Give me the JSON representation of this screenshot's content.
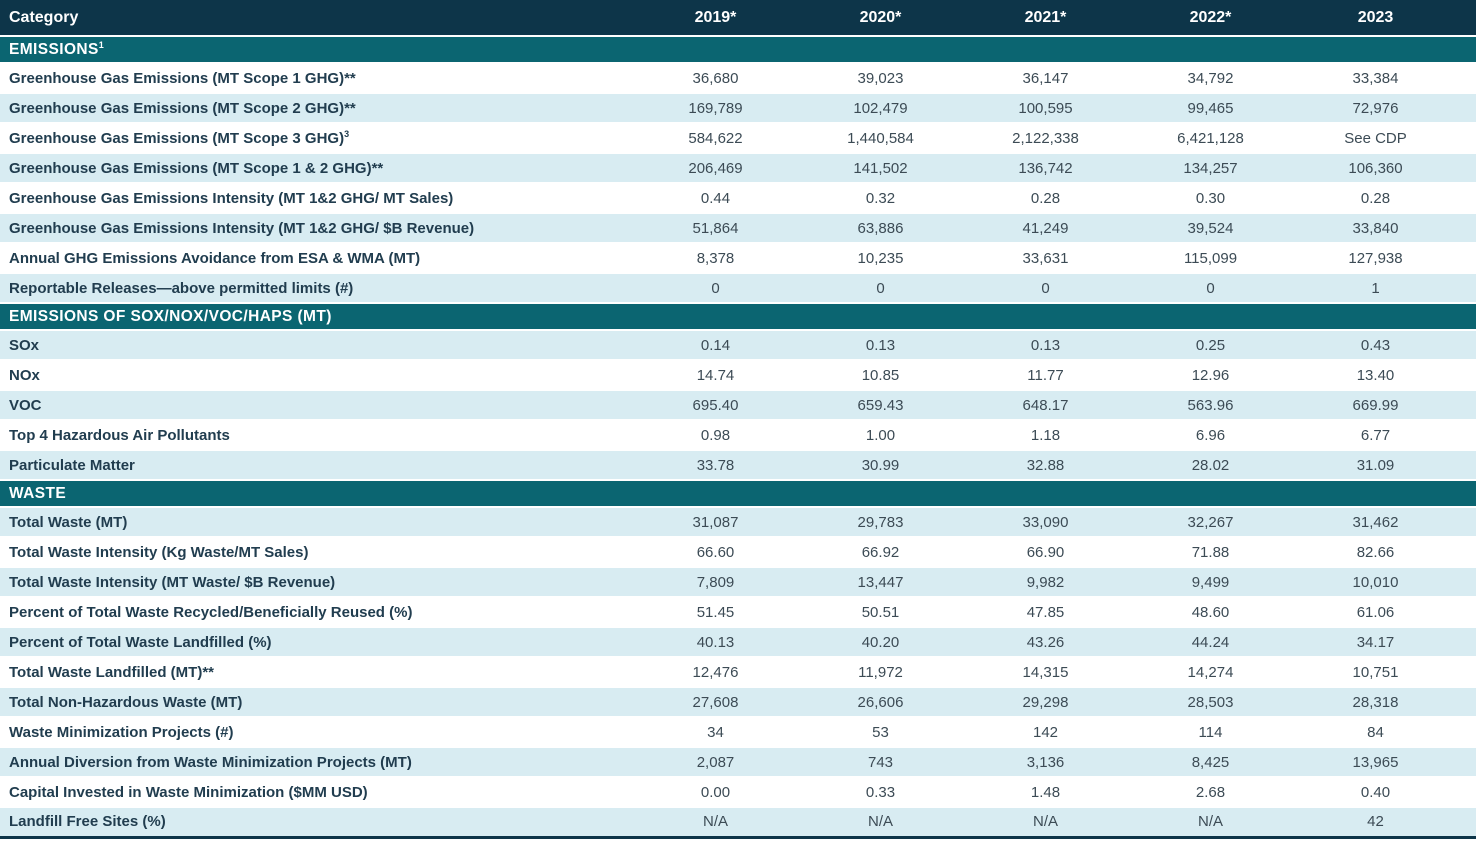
{
  "table": {
    "category_header": "Category",
    "year_headers": [
      "2019*",
      "2020*",
      "2021*",
      "2022*",
      "2023"
    ],
    "sections": [
      {
        "title": "EMISSIONS",
        "title_sup": "1",
        "rows": [
          {
            "label": "Greenhouse Gas Emissions (MT Scope 1 GHG)**",
            "values": [
              "36,680",
              "39,023",
              "36,147",
              "34,792",
              "33,384"
            ]
          },
          {
            "label": "Greenhouse Gas Emissions (MT Scope 2 GHG)**",
            "values": [
              "169,789",
              "102,479",
              "100,595",
              "99,465",
              "72,976"
            ]
          },
          {
            "label": "Greenhouse Gas Emissions (MT Scope 3 GHG)",
            "label_sup": "3",
            "values": [
              "584,622",
              "1,440,584",
              "2,122,338",
              "6,421,128",
              "See CDP"
            ]
          },
          {
            "label": "Greenhouse Gas Emissions (MT Scope 1 & 2 GHG)**",
            "values": [
              "206,469",
              "141,502",
              "136,742",
              "134,257",
              "106,360"
            ]
          },
          {
            "label": "Greenhouse Gas Emissions Intensity (MT 1&2 GHG/ MT Sales)",
            "values": [
              "0.44",
              "0.32",
              "0.28",
              "0.30",
              "0.28"
            ]
          },
          {
            "label": "Greenhouse Gas Emissions Intensity (MT 1&2 GHG/ $B Revenue)",
            "values": [
              "51,864",
              "63,886",
              "41,249",
              "39,524",
              "33,840"
            ]
          },
          {
            "label": "Annual GHG Emissions Avoidance from ESA & WMA (MT)",
            "values": [
              "8,378",
              "10,235",
              "33,631",
              "115,099",
              "127,938"
            ]
          },
          {
            "label": "Reportable Releases—above permitted limits (#)",
            "values": [
              "0",
              "0",
              "0",
              "0",
              "1"
            ]
          }
        ]
      },
      {
        "title": "EMISSIONS OF SOX/NOX/VOC/HAPS (MT)",
        "rows": [
          {
            "label": "SOx",
            "values": [
              "0.14",
              "0.13",
              "0.13",
              "0.25",
              "0.43"
            ]
          },
          {
            "label": "NOx",
            "values": [
              "14.74",
              "10.85",
              "11.77",
              "12.96",
              "13.40"
            ]
          },
          {
            "label": "VOC",
            "values": [
              "695.40",
              "659.43",
              "648.17",
              "563.96",
              "669.99"
            ]
          },
          {
            "label": "Top 4 Hazardous Air Pollutants",
            "values": [
              "0.98",
              "1.00",
              "1.18",
              "6.96",
              "6.77"
            ]
          },
          {
            "label": "Particulate Matter",
            "values": [
              "33.78",
              "30.99",
              "32.88",
              "28.02",
              "31.09"
            ]
          }
        ]
      },
      {
        "title": "WASTE",
        "rows": [
          {
            "label": "Total Waste (MT)",
            "values": [
              "31,087",
              "29,783",
              "33,090",
              "32,267",
              "31,462"
            ]
          },
          {
            "label": "Total Waste Intensity (Kg Waste/MT Sales)",
            "values": [
              "66.60",
              "66.92",
              "66.90",
              "71.88",
              "82.66"
            ]
          },
          {
            "label": "Total Waste Intensity (MT Waste/ $B Revenue)",
            "values": [
              "7,809",
              "13,447",
              "9,982",
              "9,499",
              "10,010"
            ]
          },
          {
            "label": "Percent of Total Waste Recycled/Beneficially Reused (%)",
            "values": [
              "51.45",
              "50.51",
              "47.85",
              "48.60",
              "61.06"
            ]
          },
          {
            "label": "Percent of Total Waste Landfilled (%)",
            "values": [
              "40.13",
              "40.20",
              "43.26",
              "44.24",
              "34.17"
            ]
          },
          {
            "label": "Total Waste Landfilled (MT)**",
            "values": [
              "12,476",
              "11,972",
              "14,315",
              "14,274",
              "10,751"
            ]
          },
          {
            "label": "Total Non-Hazardous Waste (MT)",
            "values": [
              "27,608",
              "26,606",
              "29,298",
              "28,503",
              "28,318"
            ]
          },
          {
            "label": "Waste Minimization Projects (#)",
            "values": [
              "34",
              "53",
              "142",
              "114",
              "84"
            ]
          },
          {
            "label": "Annual Diversion from Waste Minimization Projects (MT)",
            "values": [
              "2,087",
              "743",
              "3,136",
              "8,425",
              "13,965"
            ]
          },
          {
            "label": "Capital Invested in Waste Minimization ($MM USD)",
            "values": [
              "0.00",
              "0.33",
              "1.48",
              "2.68",
              "0.40"
            ]
          },
          {
            "label": "Landfill Free Sites (%)",
            "values": [
              "N/A",
              "N/A",
              "N/A",
              "N/A",
              "42"
            ]
          }
        ]
      }
    ],
    "colors": {
      "header_bg": "#0d3549",
      "section_bg": "#0b6571",
      "row_alt_bg": "#d8ecf2",
      "label_text": "#213d4f",
      "value_text": "#3c4b55",
      "bottom_rule": "#0d3549"
    }
  }
}
